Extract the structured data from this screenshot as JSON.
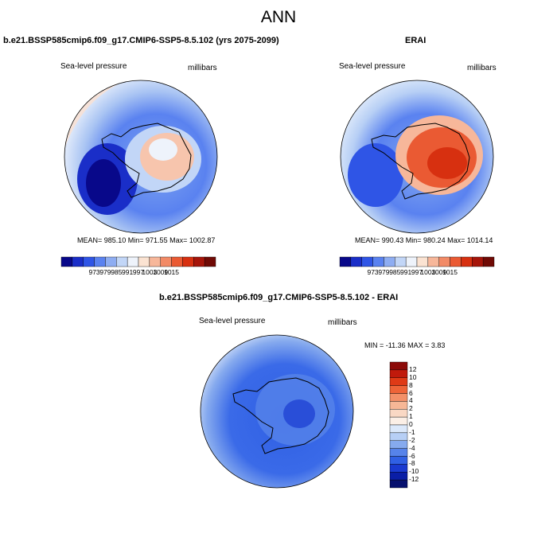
{
  "main_title": "ANN",
  "panels": [
    {
      "title": "b.e21.BSSP585cmip6.f09_g17.CMIP6-SSP5-8.5.102 (yrs 2075-2099)",
      "variable": "Sea-level pressure",
      "units": "millibars",
      "stats": "MEAN= 985.10  Min= 971.55  Max= 1002.87"
    },
    {
      "title": "ERAI",
      "variable": "Sea-level pressure",
      "units": "millibars",
      "stats": "MEAN= 990.43  Min= 980.24  Max= 1014.14"
    }
  ],
  "colorbar_labels": [
    "973",
    "979",
    "985",
    "991",
    "997",
    "1003",
    "1009",
    "1015"
  ],
  "colorbar_colors": [
    "#08088a",
    "#1a2ec8",
    "#2f55e6",
    "#5a82f0",
    "#8eadf2",
    "#c2d6f7",
    "#eef3fb",
    "#fbe3d2",
    "#f7b79a",
    "#f28a66",
    "#ea5a33",
    "#d73010",
    "#a6150a",
    "#700a05"
  ],
  "diff_panel": {
    "title": "b.e21.BSSP585cmip6.f09_g17.CMIP6-SSP5-8.5.102 - ERAI",
    "variable": "Sea-level pressure",
    "units": "millibars",
    "stats": "MIN = -11.36 MAX =   3.83",
    "colorbar_labels": [
      "12",
      "10",
      "8",
      "6",
      "4",
      "2",
      "1",
      "0",
      "-1",
      "-2",
      "-4",
      "-6",
      "-8",
      "-10",
      "-12"
    ],
    "colorbar_colors": [
      "#8c0a08",
      "#c01a0c",
      "#df3a16",
      "#ee6438",
      "#f39068",
      "#f6b796",
      "#f9d8c4",
      "#fbefe6",
      "#dbe8fa",
      "#b7cff5",
      "#86aaee",
      "#5683ea",
      "#3060e4",
      "#1a3ad0",
      "#0a1ea6",
      "#06106e"
    ]
  }
}
